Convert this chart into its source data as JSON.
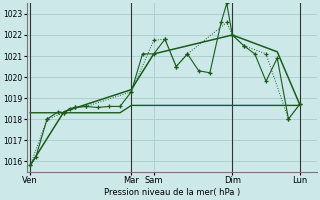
{
  "bg_color": "#cce8e8",
  "grid_color": "#aacccc",
  "line_color": "#1a5c1a",
  "ylabel": "Pression niveau de la mer( hPa )",
  "ylim": [
    1015.5,
    1023.5
  ],
  "yticks": [
    1016,
    1017,
    1018,
    1019,
    1020,
    1021,
    1022,
    1023
  ],
  "xtick_labels": [
    "Ven",
    "Mar",
    "Sam",
    "Dim",
    "Lun"
  ],
  "xtick_positions": [
    0,
    9,
    11,
    18,
    24
  ],
  "vline_positions": [
    0,
    9,
    18,
    24
  ],
  "xlim": [
    -0.3,
    25.5
  ],
  "series1_x": [
    0,
    0.5,
    1.5,
    2.5,
    3,
    3.5,
    4,
    5,
    6,
    7,
    8,
    9,
    10,
    11,
    12,
    13,
    14,
    15,
    16,
    17,
    17.5,
    18,
    19,
    20,
    21,
    22,
    23,
    24
  ],
  "series1_y": [
    1015.8,
    1016.2,
    1018.0,
    1018.35,
    1018.3,
    1018.5,
    1018.55,
    1018.6,
    1018.55,
    1018.6,
    1018.6,
    1019.3,
    1021.1,
    1021.1,
    1021.8,
    1020.5,
    1021.1,
    1020.3,
    1020.2,
    1022.6,
    1023.5,
    1022.0,
    1021.5,
    1021.1,
    1019.8,
    1020.9,
    1018.0,
    1018.7
  ],
  "series2_x": [
    0,
    1.5,
    3,
    4,
    5,
    9,
    11,
    12,
    13,
    14,
    17.5,
    18,
    19,
    21,
    23,
    24
  ],
  "series2_y": [
    1015.8,
    1018.0,
    1018.3,
    1018.55,
    1018.6,
    1019.3,
    1021.75,
    1021.8,
    1020.5,
    1021.1,
    1022.6,
    1022.0,
    1021.5,
    1021.1,
    1018.0,
    1018.7
  ],
  "series3_x": [
    0,
    3,
    9,
    11,
    18,
    22,
    24
  ],
  "series3_y": [
    1015.8,
    1018.35,
    1019.4,
    1021.1,
    1022.0,
    1021.2,
    1018.7
  ],
  "series4_x": [
    0,
    1.5,
    3,
    4,
    5,
    6,
    7,
    8,
    9,
    10,
    11,
    12,
    13,
    14,
    15,
    16,
    17,
    17.5,
    18,
    19,
    20,
    21,
    22,
    23,
    24
  ],
  "series4_y": [
    1018.3,
    1018.3,
    1018.3,
    1018.3,
    1018.3,
    1018.3,
    1018.3,
    1018.3,
    1018.65,
    1018.65,
    1018.65,
    1018.65,
    1018.65,
    1018.65,
    1018.65,
    1018.65,
    1018.65,
    1018.65,
    1018.65,
    1018.65,
    1018.65,
    1018.65,
    1018.65,
    1018.65,
    1018.65
  ]
}
